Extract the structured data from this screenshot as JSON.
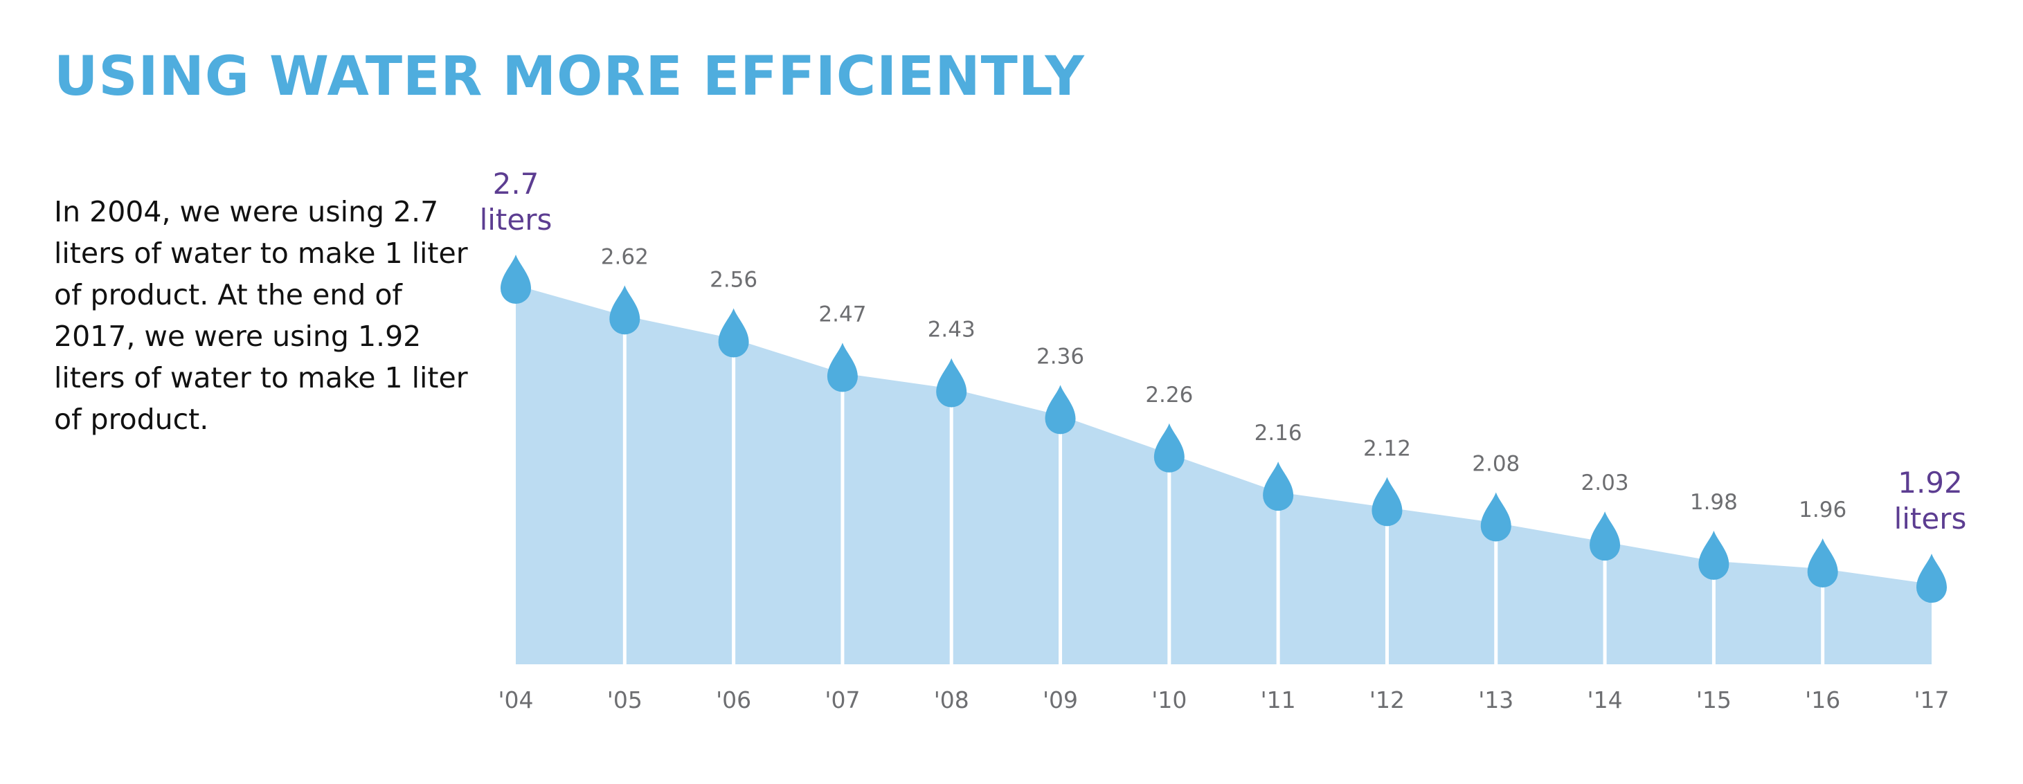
{
  "title": "USING WATER MORE EFFICIENTLY",
  "description": "In 2004, we were using 2.7 liters of water to make 1 liter of product. At the end of 2017, we were using 1.92 liters of water to make 1 liter of product.",
  "colors": {
    "title": "#4fadde",
    "area": "#bcdcf2",
    "drop": "#4fadde",
    "value_label": "#6d6e71",
    "highlight_label": "#5c3d91"
  },
  "chart_data": {
    "type": "area",
    "categories": [
      "'04",
      "'05",
      "'06",
      "'07",
      "'08",
      "'09",
      "'10",
      "'11",
      "'12",
      "'13",
      "'14",
      "'15",
      "'16",
      "'17"
    ],
    "values": [
      2.7,
      2.62,
      2.56,
      2.47,
      2.43,
      2.36,
      2.26,
      2.16,
      2.12,
      2.08,
      2.03,
      1.98,
      1.96,
      1.92
    ],
    "data_labels": [
      "2.7",
      "2.62",
      "2.56",
      "2.47",
      "2.43",
      "2.36",
      "2.26",
      "2.16",
      "2.12",
      "2.08",
      "2.03",
      "1.98",
      "1.96",
      "1.92"
    ],
    "highlight": {
      "first": {
        "value": "2.7",
        "unit": "liters"
      },
      "last": {
        "value": "1.92",
        "unit": "liters"
      }
    },
    "marker": "water-drop-icon",
    "grid": false,
    "legend": "none"
  }
}
